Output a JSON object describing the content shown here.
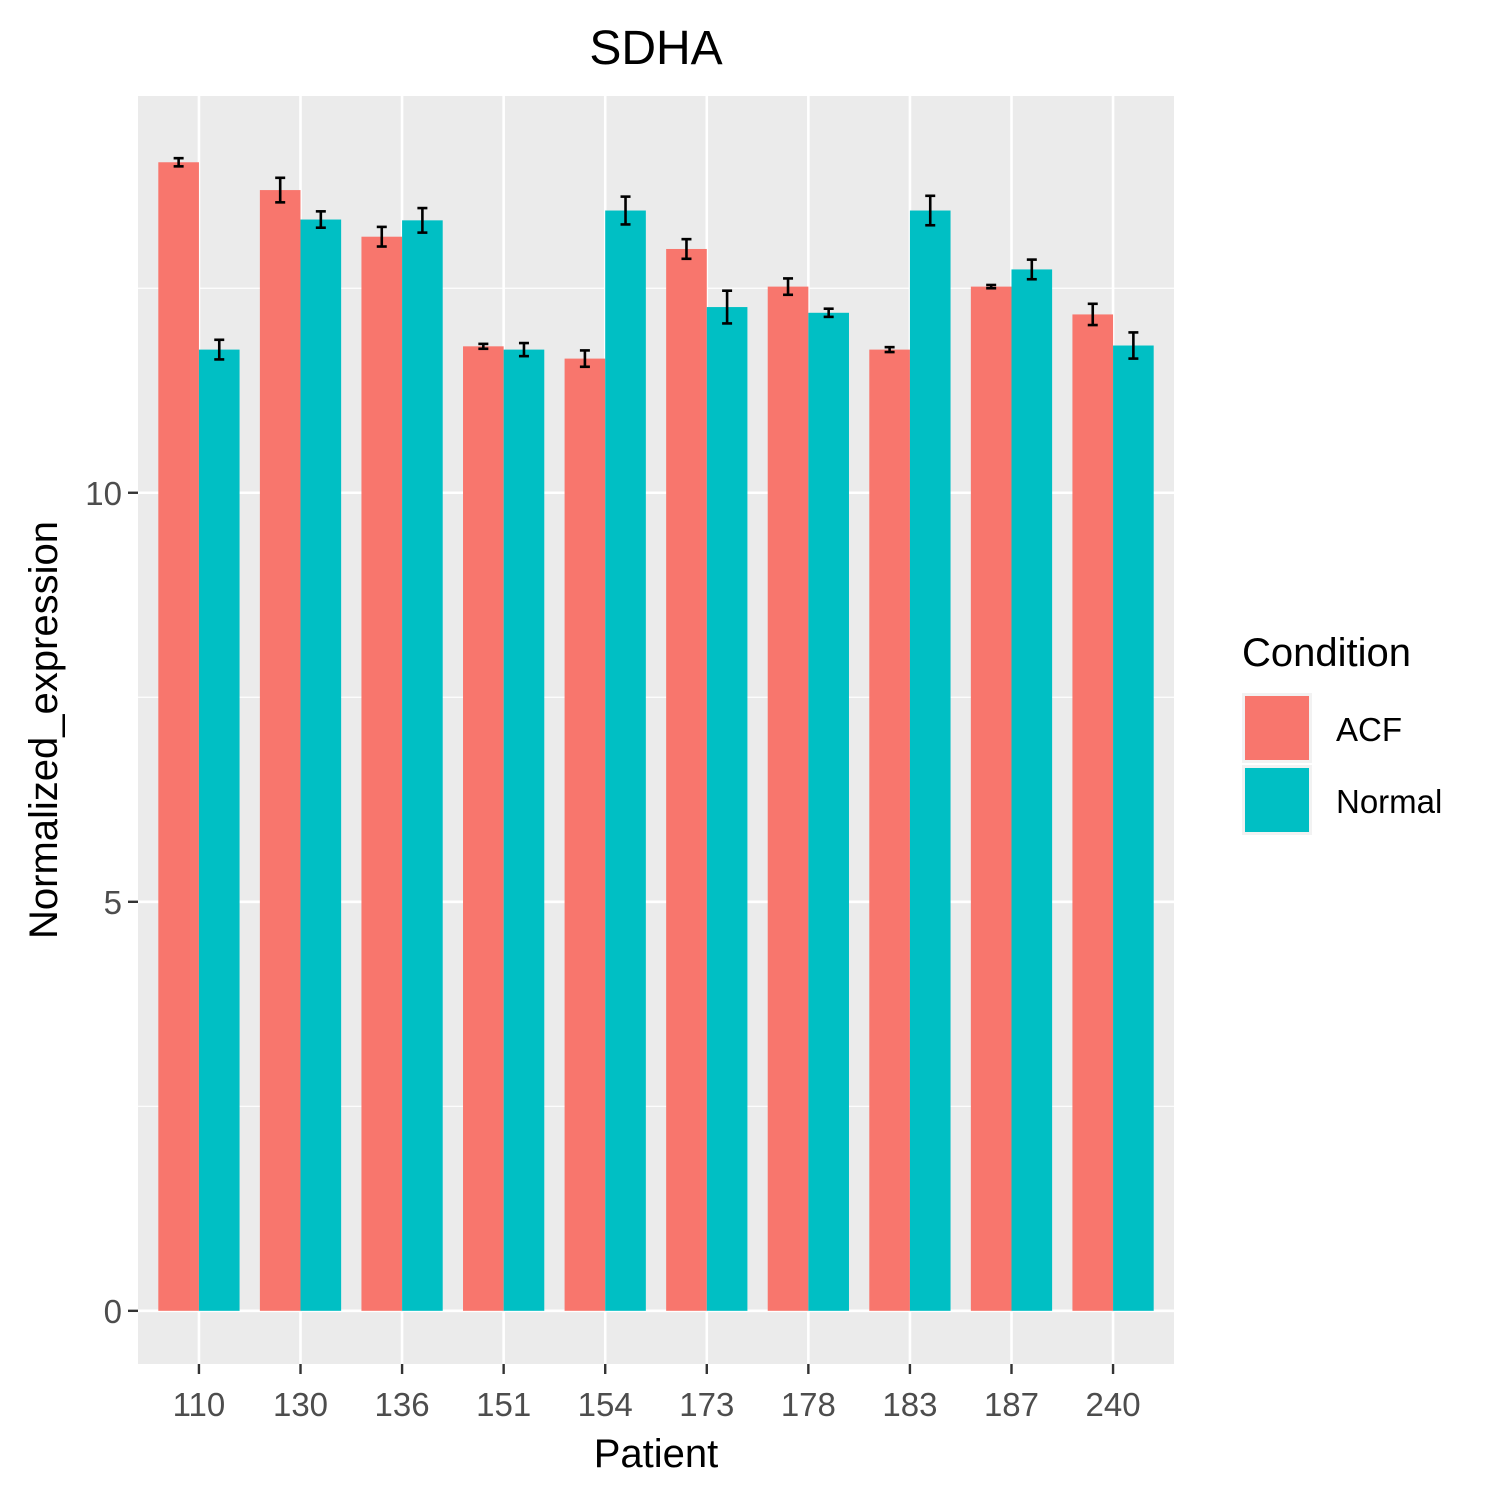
{
  "chart_data": {
    "type": "bar",
    "title": "SDHA",
    "xlabel": "Patient",
    "ylabel": "Normalized_expression",
    "ylim": [
      -0.65,
      14.85
    ],
    "yticks": [
      0,
      5,
      10
    ],
    "grid": true,
    "legend": {
      "title": "Condition",
      "placement": "right"
    },
    "categories": [
      "110",
      "130",
      "136",
      "151",
      "154",
      "173",
      "178",
      "183",
      "187",
      "240"
    ],
    "series": [
      {
        "name": "ACF",
        "color": "#F8766D",
        "values": [
          14.04,
          13.7,
          13.13,
          11.79,
          11.64,
          12.98,
          12.52,
          11.75,
          12.52,
          12.18
        ],
        "errors": [
          0.05,
          0.15,
          0.12,
          0.03,
          0.1,
          0.12,
          0.1,
          0.03,
          0.02,
          0.13
        ]
      },
      {
        "name": "Normal",
        "color": "#00BFC4",
        "values": [
          11.75,
          13.34,
          13.33,
          11.75,
          13.45,
          12.27,
          12.2,
          13.45,
          12.73,
          11.8
        ],
        "errors": [
          0.12,
          0.1,
          0.15,
          0.08,
          0.17,
          0.2,
          0.05,
          0.18,
          0.12,
          0.16
        ]
      }
    ]
  }
}
